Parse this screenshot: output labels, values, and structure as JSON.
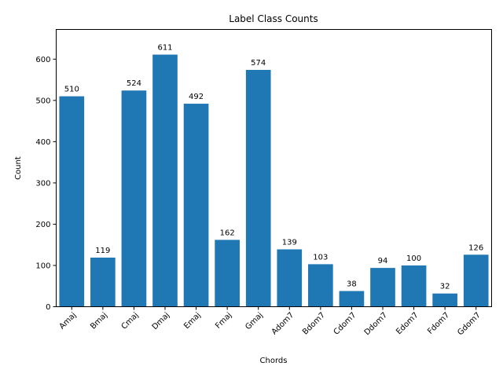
{
  "chart_data": {
    "type": "bar",
    "title": "Label Class Counts",
    "xlabel": "Chords",
    "ylabel": "Count",
    "categories": [
      "Amaj",
      "Bmaj",
      "Cmaj",
      "Dmaj",
      "Emaj",
      "Fmaj",
      "Gmaj",
      "Adom7",
      "Bdom7",
      "Cdom7",
      "Ddom7",
      "Edom7",
      "Fdom7",
      "Gdom7"
    ],
    "values": [
      510,
      119,
      524,
      611,
      492,
      162,
      574,
      139,
      103,
      38,
      94,
      100,
      32,
      126
    ],
    "ylim": [
      0,
      672
    ],
    "yticks": [
      0,
      100,
      200,
      300,
      400,
      500,
      600
    ],
    "bar_color": "#1f77b4",
    "grid": false,
    "data_labels": true
  }
}
